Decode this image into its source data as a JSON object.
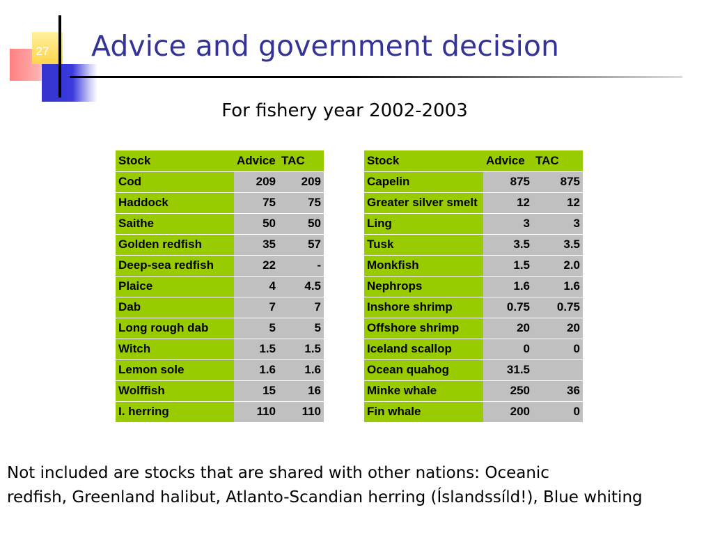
{
  "slide": {
    "number": "27",
    "title": "Advice and government decision",
    "subtitle": "For fishery year 2002-2003"
  },
  "table_left": {
    "headers": [
      "Stock",
      "Advice",
      "TAC"
    ],
    "rows": [
      [
        "Cod",
        "209",
        "209"
      ],
      [
        "Haddock",
        "75",
        "75"
      ],
      [
        "Saithe",
        "50",
        "50"
      ],
      [
        "Golden redfish",
        "35",
        "57"
      ],
      [
        "Deep-sea redfish",
        "22",
        "-"
      ],
      [
        "Plaice",
        "4",
        "4.5"
      ],
      [
        "Dab",
        "7",
        "7"
      ],
      [
        "Long rough dab",
        "5",
        "5"
      ],
      [
        "Witch",
        "1.5",
        "1.5"
      ],
      [
        "Lemon sole",
        "1.6",
        "1.6"
      ],
      [
        "Wolffish",
        "15",
        "16"
      ],
      [
        "I. herring",
        "110",
        "110"
      ]
    ]
  },
  "table_right": {
    "headers": [
      "Stock",
      "Advice",
      "TAC"
    ],
    "rows": [
      [
        "Capelin",
        "875",
        "875"
      ],
      [
        "Greater silver smelt",
        "12",
        "12"
      ],
      [
        "Ling",
        "3",
        "3"
      ],
      [
        "Tusk",
        "3.5",
        "3.5"
      ],
      [
        "Monkfish",
        "1.5",
        "2.0"
      ],
      [
        "Nephrops",
        "1.6",
        "1.6"
      ],
      [
        "Inshore shrimp",
        "0.75",
        "0.75"
      ],
      [
        "Offshore shrimp",
        "20",
        "20"
      ],
      [
        "Iceland scallop",
        "0",
        "0"
      ],
      [
        "Ocean quahog",
        "31.5",
        ""
      ],
      [
        "Minke whale",
        "250",
        "36"
      ],
      [
        "Fin whale",
        "200",
        "0"
      ]
    ]
  },
  "footnote": {
    "line1": "Not included are stocks that are shared with other nations: Oceanic",
    "line2": "redfish, Greenland halibut, Atlanto-Scandian herring (Íslandssíld!), Blue whiting"
  },
  "colors": {
    "title": "#333399",
    "stock_cell": "#99cc00",
    "value_cell": "#c0c0c0",
    "accent_red": "#ff8080",
    "accent_yellow": "#ffd54a",
    "accent_blue": "#3333cc"
  }
}
